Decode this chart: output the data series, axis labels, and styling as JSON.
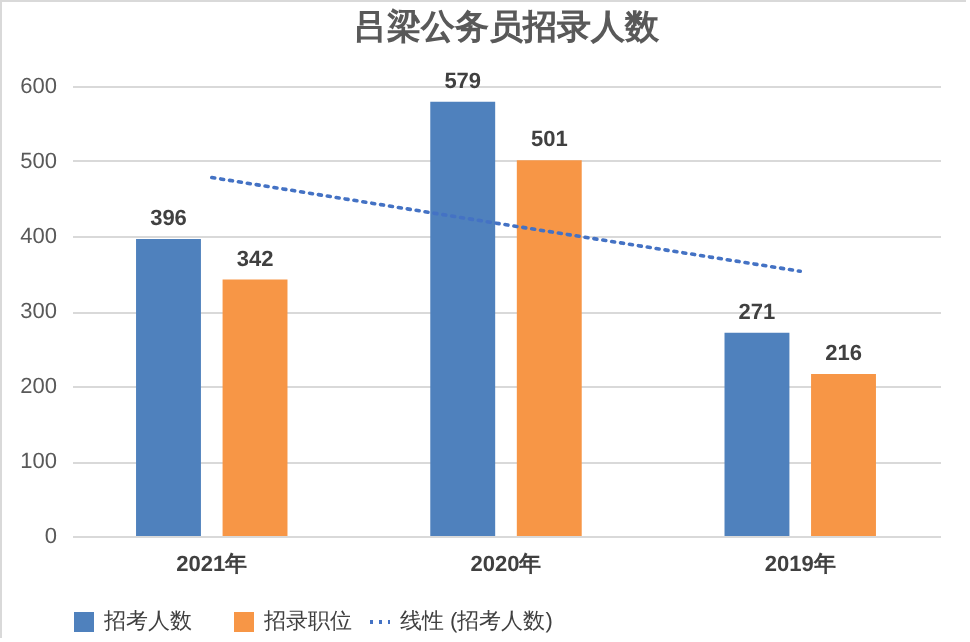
{
  "chart_data": {
    "type": "bar",
    "title": "吕梁公务员招录人数",
    "categories": [
      "2021年",
      "2020年",
      "2019年"
    ],
    "series": [
      {
        "name": "招考人数",
        "color": "#4f81bd",
        "values": [
          396,
          579,
          271
        ],
        "value_labels": [
          "396",
          "579",
          "271"
        ]
      },
      {
        "name": "招录职位",
        "color": "#f79646",
        "values": [
          342,
          501,
          216
        ],
        "value_labels": [
          "342",
          "501",
          "216"
        ]
      },
      {
        "name": "线性 (招考人数)",
        "type": "line",
        "color": "#4472c4",
        "line_style": "dotted",
        "x": [
          "2021年",
          "2020年",
          "2019年"
        ],
        "values": [
          478,
          415,
          353
        ]
      }
    ],
    "ylim": [
      0,
      600
    ],
    "yticks": [
      0,
      100,
      200,
      300,
      400,
      500,
      600
    ],
    "grid": "y",
    "legend": "bottom"
  }
}
